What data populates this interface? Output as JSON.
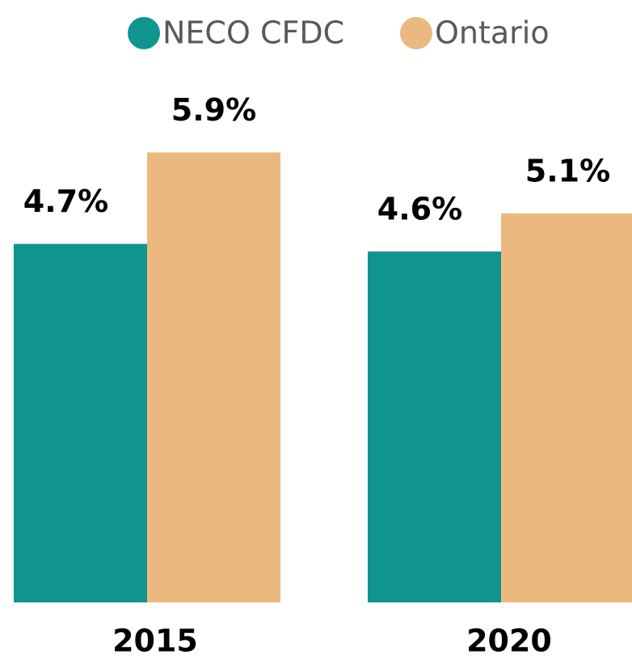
{
  "chart_data": {
    "type": "bar",
    "categories": [
      "2015",
      "2020"
    ],
    "series": [
      {
        "name": "NECO CFDC",
        "color": "#10948f",
        "values": [
          4.7,
          4.6
        ],
        "value_labels": [
          "4.7%",
          "4.6%"
        ]
      },
      {
        "name": "Ontario",
        "color": "#ebb97f",
        "values": [
          5.9,
          5.1
        ],
        "value_labels": [
          "5.9%",
          "5.1%"
        ]
      }
    ],
    "ylim": [
      0,
      6
    ],
    "legend": "top"
  }
}
